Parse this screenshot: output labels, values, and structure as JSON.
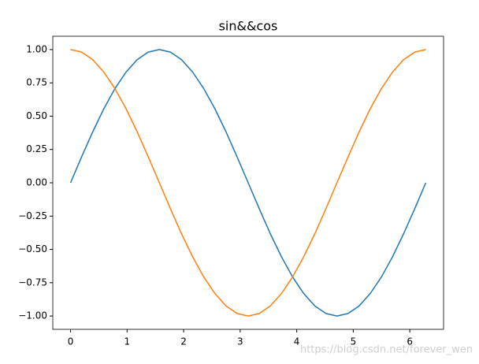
{
  "chart_data": {
    "type": "line",
    "title": "sin&&cos",
    "x": [
      0,
      0.196,
      0.393,
      0.589,
      0.785,
      0.982,
      1.178,
      1.374,
      1.571,
      1.767,
      1.963,
      2.16,
      2.356,
      2.553,
      2.749,
      2.945,
      3.142,
      3.338,
      3.534,
      3.731,
      3.927,
      4.123,
      4.32,
      4.516,
      4.712,
      4.909,
      5.105,
      5.301,
      5.498,
      5.694,
      5.89,
      6.087,
      6.283
    ],
    "series": [
      {
        "color": "#1f77b4",
        "values": [
          0,
          0.195,
          0.383,
          0.556,
          0.707,
          0.831,
          0.924,
          0.981,
          1,
          0.981,
          0.924,
          0.831,
          0.707,
          0.556,
          0.383,
          0.195,
          0,
          -0.195,
          -0.383,
          -0.556,
          -0.707,
          -0.831,
          -0.924,
          -0.981,
          -1,
          -0.981,
          -0.924,
          -0.831,
          -0.707,
          -0.556,
          -0.383,
          -0.195,
          0
        ]
      },
      {
        "color": "#ff7f0e",
        "values": [
          1,
          0.981,
          0.924,
          0.831,
          0.707,
          0.556,
          0.383,
          0.195,
          0,
          -0.195,
          -0.383,
          -0.556,
          -0.707,
          -0.831,
          -0.924,
          -0.981,
          -1,
          -0.981,
          -0.924,
          -0.831,
          -0.707,
          -0.556,
          -0.383,
          -0.195,
          0,
          0.195,
          0.383,
          0.556,
          0.707,
          0.831,
          0.924,
          0.981,
          1
        ]
      }
    ],
    "xlim": [
      -0.314,
      6.597
    ],
    "xticks": [
      0,
      1,
      2,
      3,
      4,
      5,
      6
    ],
    "ylim": [
      -1.1,
      1.1
    ],
    "yticks": [
      {
        "value": -1,
        "label": "−1.00"
      },
      {
        "value": -0.75,
        "label": "−0.75"
      },
      {
        "value": -0.5,
        "label": "−0.50"
      },
      {
        "value": -0.25,
        "label": "−0.25"
      },
      {
        "value": 0,
        "label": "0.00"
      },
      {
        "value": 0.25,
        "label": "0.25"
      },
      {
        "value": 0.5,
        "label": "0.50"
      },
      {
        "value": 0.75,
        "label": "0.75"
      },
      {
        "value": 1,
        "label": "1.00"
      }
    ],
    "watermark": "https://blog.csdn.net/forever_wen"
  }
}
